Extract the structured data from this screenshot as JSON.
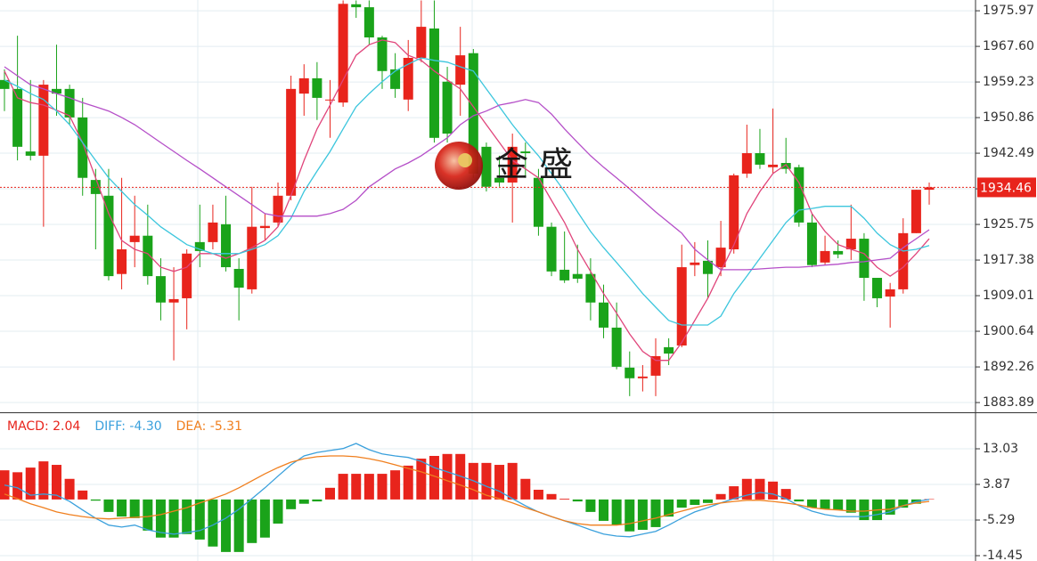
{
  "chart_data": [
    {
      "type": "candlestick",
      "up_color": "#e8241c",
      "down_color": "#1aa31a",
      "open": [
        1959.7,
        1957.6,
        1942.9,
        1941.9,
        1957.6,
        1957.6,
        1950.9,
        1936.2,
        1932.5,
        1914.1,
        1921.6,
        1923.1,
        1913.6,
        1907.4,
        1908.4,
        1921.6,
        1921.6,
        1925.8,
        1915.3,
        1910.5,
        1924.9,
        1926.2,
        1932.5,
        1956.5,
        1960.1,
        1954.9,
        1954.4,
        1977.5,
        1976.8,
        1969.7,
        1962.2,
        1955.1,
        1964.9,
        1971.8,
        1959.3,
        1958.6,
        1966.0,
        1944.0,
        1936.7,
        1935.6,
        1942.9,
        1936.7,
        1925.2,
        1915.1,
        1914.1,
        1914.1,
        1907.4,
        1901.5,
        1892.1,
        1889.6,
        1890.2,
        1896.9,
        1897.3,
        1916.2,
        1917.2,
        1915.7,
        1919.9,
        1937.7,
        1942.5,
        1939.2,
        1940.2,
        1939.2,
        1926.2,
        1916.8,
        1919.5,
        1919.9,
        1922.4,
        1913.2,
        1908.8,
        1910.5,
        1923.7,
        1933.9
      ],
      "close": [
        1957.6,
        1944.0,
        1941.9,
        1958.6,
        1956.5,
        1950.9,
        1936.7,
        1932.9,
        1913.6,
        1919.9,
        1923.1,
        1913.6,
        1907.4,
        1908.2,
        1918.9,
        1919.5,
        1926.2,
        1915.7,
        1910.9,
        1925.2,
        1925.4,
        1932.5,
        1957.6,
        1960.1,
        1955.5,
        1955.1,
        1977.6,
        1976.8,
        1969.7,
        1961.8,
        1957.6,
        1964.9,
        1972.2,
        1946.1,
        1947.1,
        1965.5,
        1937.7,
        1934.6,
        1935.6,
        1944.0,
        1942.5,
        1925.2,
        1914.7,
        1912.6,
        1913.0,
        1907.4,
        1901.5,
        1892.3,
        1889.6,
        1890.0,
        1894.8,
        1895.4,
        1915.7,
        1916.8,
        1914.1,
        1920.3,
        1937.3,
        1942.5,
        1939.8,
        1939.8,
        1938.8,
        1926.2,
        1916.2,
        1919.5,
        1918.7,
        1922.4,
        1913.2,
        1908.4,
        1910.5,
        1923.7,
        1933.9,
        1934.46
      ],
      "high": [
        1962.2,
        1970.1,
        1959.7,
        1959.7,
        1968.0,
        1958.6,
        1955.5,
        1938.8,
        1938.8,
        1936.7,
        1932.5,
        1930.4,
        1917.8,
        1915.7,
        1919.9,
        1930.4,
        1930.4,
        1932.5,
        1917.8,
        1934.6,
        1928.3,
        1935.6,
        1960.7,
        1963.4,
        1963.9,
        1959.7,
        1978.4,
        1978.4,
        1978.4,
        1970.1,
        1966.0,
        1969.1,
        1978.4,
        1978.4,
        1962.8,
        1972.2,
        1967.0,
        1945.0,
        1941.9,
        1947.1,
        1945.0,
        1938.8,
        1926.2,
        1924.1,
        1921.0,
        1917.8,
        1911.6,
        1907.4,
        1895.9,
        1892.7,
        1899.0,
        1899.0,
        1921.0,
        1921.6,
        1922.0,
        1926.6,
        1937.7,
        1949.2,
        1948.2,
        1953.0,
        1946.1,
        1939.8,
        1928.3,
        1923.1,
        1922.0,
        1930.4,
        1923.7,
        1913.2,
        1912.0,
        1927.2,
        1933.9,
        1935.6
      ],
      "low": [
        1952.4,
        1940.8,
        1940.8,
        1925.2,
        1951.3,
        1949.2,
        1932.5,
        1919.9,
        1912.6,
        1910.5,
        1915.7,
        1911.6,
        1903.2,
        1893.8,
        1901.1,
        1915.7,
        1919.9,
        1914.7,
        1903.2,
        1909.5,
        1922.0,
        1925.2,
        1931.4,
        1951.3,
        1950.3,
        1946.1,
        1953.4,
        1974.3,
        1968.0,
        1957.6,
        1955.5,
        1952.4,
        1963.9,
        1945.0,
        1945.0,
        1951.3,
        1936.7,
        1933.5,
        1934.6,
        1926.2,
        1936.7,
        1923.1,
        1913.6,
        1912.0,
        1912.0,
        1903.2,
        1899.0,
        1891.7,
        1885.4,
        1886.5,
        1885.4,
        1892.7,
        1896.9,
        1913.6,
        1908.4,
        1913.6,
        1918.9,
        1936.7,
        1938.8,
        1937.7,
        1937.7,
        1925.2,
        1915.7,
        1916.2,
        1917.8,
        1917.4,
        1907.8,
        1906.3,
        1901.5,
        1909.5,
        1923.7,
        1930.4
      ],
      "series": [
        {
          "color": "#e0457b",
          "values": [
            1961.8,
            1955.5,
            1954.4,
            1953.8,
            1952.6,
            1951.3,
            1945.0,
            1936.7,
            1928.3,
            1922.0,
            1919.9,
            1918.9,
            1915.7,
            1914.7,
            1915.7,
            1918.9,
            1918.9,
            1917.8,
            1918.9,
            1920.3,
            1922.0,
            1925.2,
            1932.5,
            1940.8,
            1948.2,
            1953.8,
            1959.7,
            1965.5,
            1968.0,
            1969.1,
            1968.5,
            1965.5,
            1964.3,
            1961.8,
            1959.7,
            1957.6,
            1953.4,
            1949.2,
            1945.0,
            1940.8,
            1938.8,
            1936.7,
            1931.4,
            1926.2,
            1919.9,
            1914.7,
            1909.5,
            1904.9,
            1900.0,
            1895.9,
            1893.8,
            1893.8,
            1898.0,
            1903.2,
            1908.4,
            1914.7,
            1920.9,
            1928.3,
            1933.5,
            1937.7,
            1939.8,
            1935.6,
            1928.3,
            1924.1,
            1921.0,
            1919.9,
            1918.9,
            1915.7,
            1913.6,
            1915.7,
            1918.9,
            1922.4
          ]
        },
        {
          "color": "#3cc6dd",
          "values": [
            1959.7,
            1958.2,
            1956.5,
            1955.1,
            1952.4,
            1949.2,
            1945.0,
            1940.8,
            1936.7,
            1933.5,
            1930.4,
            1927.9,
            1925.2,
            1923.1,
            1921.0,
            1919.9,
            1918.9,
            1918.9,
            1918.9,
            1919.9,
            1921.0,
            1923.1,
            1927.2,
            1933.5,
            1938.3,
            1942.9,
            1948.2,
            1953.4,
            1956.5,
            1959.3,
            1961.8,
            1963.4,
            1964.9,
            1964.3,
            1963.9,
            1962.8,
            1961.8,
            1957.6,
            1953.4,
            1949.2,
            1945.4,
            1941.9,
            1937.7,
            1933.5,
            1928.7,
            1924.1,
            1920.3,
            1916.8,
            1913.2,
            1909.5,
            1906.3,
            1903.2,
            1902.1,
            1902.1,
            1902.1,
            1904.2,
            1909.5,
            1913.6,
            1917.8,
            1922.0,
            1926.2,
            1929.1,
            1929.5,
            1930.0,
            1930.0,
            1930.0,
            1927.2,
            1923.7,
            1921.0,
            1919.5,
            1919.9,
            1920.8
          ]
        },
        {
          "color": "#b54fc8",
          "values": [
            1962.8,
            1960.7,
            1958.6,
            1957.6,
            1956.5,
            1955.5,
            1954.4,
            1953.4,
            1952.4,
            1950.9,
            1949.2,
            1947.1,
            1945.0,
            1942.9,
            1940.8,
            1938.8,
            1936.7,
            1934.6,
            1932.5,
            1930.4,
            1928.3,
            1927.7,
            1927.7,
            1927.7,
            1927.7,
            1928.3,
            1929.3,
            1931.4,
            1934.6,
            1936.7,
            1938.8,
            1940.2,
            1941.9,
            1944.0,
            1946.1,
            1949.2,
            1951.3,
            1952.4,
            1953.8,
            1954.4,
            1955.1,
            1954.4,
            1951.7,
            1948.2,
            1945.0,
            1941.9,
            1939.2,
            1936.7,
            1934.1,
            1931.4,
            1928.7,
            1926.2,
            1923.7,
            1919.9,
            1917.4,
            1915.1,
            1915.1,
            1915.1,
            1915.3,
            1915.5,
            1915.7,
            1915.7,
            1915.9,
            1916.2,
            1916.4,
            1916.8,
            1917.0,
            1917.4,
            1917.8,
            1920.3,
            1922.4,
            1924.5
          ]
        }
      ],
      "last_price": 1934.46,
      "last_price_color": "#e8241c",
      "ylim": [
        1881.6,
        1978.5
      ],
      "yticks": [
        1975.97,
        {
          "value": 1967.6,
          "label": "1967.60"
        },
        1959.23,
        1950.86,
        1942.49,
        1934.12,
        1925.75,
        1917.38,
        1909.01,
        1900.64,
        1892.26,
        1883.89
      ],
      "hidden_ticks": [
        5
      ],
      "grid": true
    },
    {
      "type": "macd",
      "up_color": "#e8241c",
      "down_color": "#1aa31a",
      "values": [
        7.5,
        7.0,
        8.2,
        9.8,
        8.9,
        5.3,
        2.3,
        -0.3,
        -3.2,
        -4.4,
        -4.8,
        -8.0,
        -9.8,
        -9.8,
        -8.9,
        -10.3,
        -12.1,
        -13.5,
        -13.5,
        -11.2,
        -9.8,
        -6.2,
        -2.5,
        -1.1,
        -0.5,
        3.0,
        6.6,
        6.6,
        6.6,
        6.6,
        7.5,
        8.7,
        10.5,
        11.2,
        11.7,
        11.7,
        9.4,
        9.4,
        8.9,
        9.4,
        5.3,
        2.5,
        1.4,
        0.2,
        -0.5,
        -3.2,
        -5.5,
        -6.6,
        -8.2,
        -7.8,
        -7.1,
        -4.4,
        -2.1,
        -1.4,
        -0.9,
        1.4,
        3.4,
        5.3,
        5.3,
        4.6,
        2.7,
        -0.5,
        -2.1,
        -2.5,
        -2.7,
        -3.4,
        -5.3,
        -5.3,
        -3.9,
        -2.1,
        -1.1,
        0.1
      ],
      "series": [
        {
          "color": "#3aa0dc",
          "values": [
            3.7,
            3.0,
            1.1,
            1.4,
            1.1,
            -0.5,
            -2.7,
            -4.8,
            -6.6,
            -7.1,
            -6.6,
            -7.8,
            -8.5,
            -8.9,
            -8.5,
            -8.0,
            -6.6,
            -4.8,
            -2.5,
            0.2,
            3.0,
            6.0,
            8.9,
            11.2,
            12.1,
            12.6,
            13.1,
            14.4,
            12.8,
            11.7,
            11.2,
            10.8,
            9.8,
            8.2,
            7.1,
            6.0,
            4.8,
            3.4,
            2.1,
            0.2,
            -1.6,
            -3.2,
            -4.4,
            -5.5,
            -6.6,
            -7.8,
            -8.9,
            -9.4,
            -9.6,
            -8.9,
            -8.2,
            -6.6,
            -4.8,
            -3.2,
            -2.1,
            -0.9,
            0.2,
            1.1,
            1.8,
            1.4,
            0.2,
            -1.6,
            -3.0,
            -3.9,
            -4.4,
            -4.4,
            -4.4,
            -3.9,
            -3.2,
            -1.6,
            -0.5,
            0.0
          ]
        },
        {
          "color": "#f07f1e",
          "values": [
            1.4,
            0.2,
            -1.1,
            -2.1,
            -3.2,
            -3.9,
            -4.4,
            -4.8,
            -5.0,
            -4.8,
            -4.6,
            -4.4,
            -3.9,
            -3.0,
            -2.1,
            -0.9,
            0.2,
            1.4,
            3.0,
            4.8,
            6.6,
            8.2,
            9.6,
            10.5,
            11.0,
            11.2,
            11.2,
            11.0,
            10.5,
            9.8,
            8.9,
            8.0,
            7.1,
            6.0,
            4.8,
            3.7,
            2.5,
            1.1,
            0.2,
            -0.9,
            -2.1,
            -3.2,
            -4.4,
            -5.5,
            -6.2,
            -6.6,
            -6.6,
            -6.6,
            -6.2,
            -5.5,
            -4.8,
            -3.9,
            -3.0,
            -2.1,
            -1.4,
            -0.9,
            -0.5,
            -0.2,
            -0.2,
            -0.5,
            -0.9,
            -1.4,
            -2.1,
            -2.5,
            -2.7,
            -3.0,
            -3.0,
            -2.7,
            -2.5,
            -1.6,
            -0.9,
            -0.5
          ]
        }
      ],
      "legend": [
        {
          "label": "MACD: 2.04",
          "color": "#e8241c"
        },
        {
          "label": "DIFF: -4.30",
          "color": "#3aa0dc"
        },
        {
          "label": "DEA: -5.31",
          "color": "#f07f1e"
        }
      ],
      "ylim": [
        -15.82,
        21.96
      ],
      "yticks": [
        13.03,
        3.87,
        -5.29,
        -14.45
      ],
      "grid": true
    }
  ],
  "watermark": "金 盛"
}
